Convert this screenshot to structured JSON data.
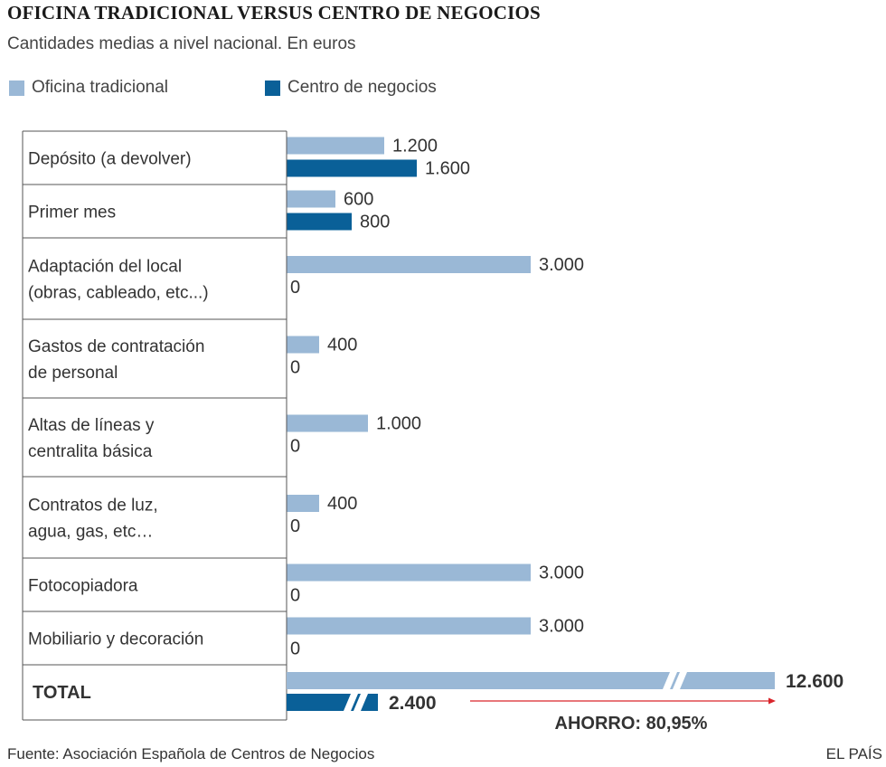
{
  "title": "OFICINA TRADICIONAL VERSUS CENTRO DE NEGOCIOS",
  "subtitle": "Cantidades medias a nivel nacional. En euros",
  "colors": {
    "tradicional": "#9ab8d6",
    "negocios": "#0a6098",
    "arrow": "#d9252b",
    "text": "#333333"
  },
  "chart_data": {
    "type": "bar",
    "orientation": "horizontal",
    "series_names": [
      "Oficina tradicional",
      "Centro de negocios"
    ],
    "categories": [
      {
        "label": [
          "Depósito (a devolver)"
        ],
        "values": [
          1200,
          1600
        ],
        "texts": [
          "1.200",
          "1.600"
        ]
      },
      {
        "label": [
          "Primer mes"
        ],
        "values": [
          600,
          800
        ],
        "texts": [
          "600",
          "800"
        ]
      },
      {
        "label": [
          "Adaptación del local",
          "(obras, cableado, etc...)"
        ],
        "values": [
          3000,
          0
        ],
        "texts": [
          "3.000",
          "0"
        ]
      },
      {
        "label": [
          "Gastos de contratación",
          "de personal"
        ],
        "values": [
          400,
          0
        ],
        "texts": [
          "400",
          "0"
        ]
      },
      {
        "label": [
          "Altas de líneas y",
          "centralita básica"
        ],
        "values": [
          1000,
          0
        ],
        "texts": [
          "1.000",
          "0"
        ]
      },
      {
        "label": [
          "Contratos de luz,",
          "agua, gas, etc…"
        ],
        "values": [
          400,
          0
        ],
        "texts": [
          "400",
          "0"
        ]
      },
      {
        "label": [
          "Fotocopiadora"
        ],
        "values": [
          3000,
          0
        ],
        "texts": [
          "3.000",
          "0"
        ]
      },
      {
        "label": [
          "Mobiliario y decoración"
        ],
        "values": [
          3000,
          0
        ],
        "texts": [
          "3.000",
          "0"
        ]
      }
    ],
    "total": {
      "label": "TOTAL",
      "values": [
        12600,
        2400
      ],
      "texts": [
        "12.600",
        "2.400"
      ],
      "axis_break": true
    },
    "annotation": "AHORRO: 80,95%"
  },
  "footer": {
    "source": "Fuente: Asociación Española de Centros de Negocios",
    "brand": "EL PAÍS"
  }
}
